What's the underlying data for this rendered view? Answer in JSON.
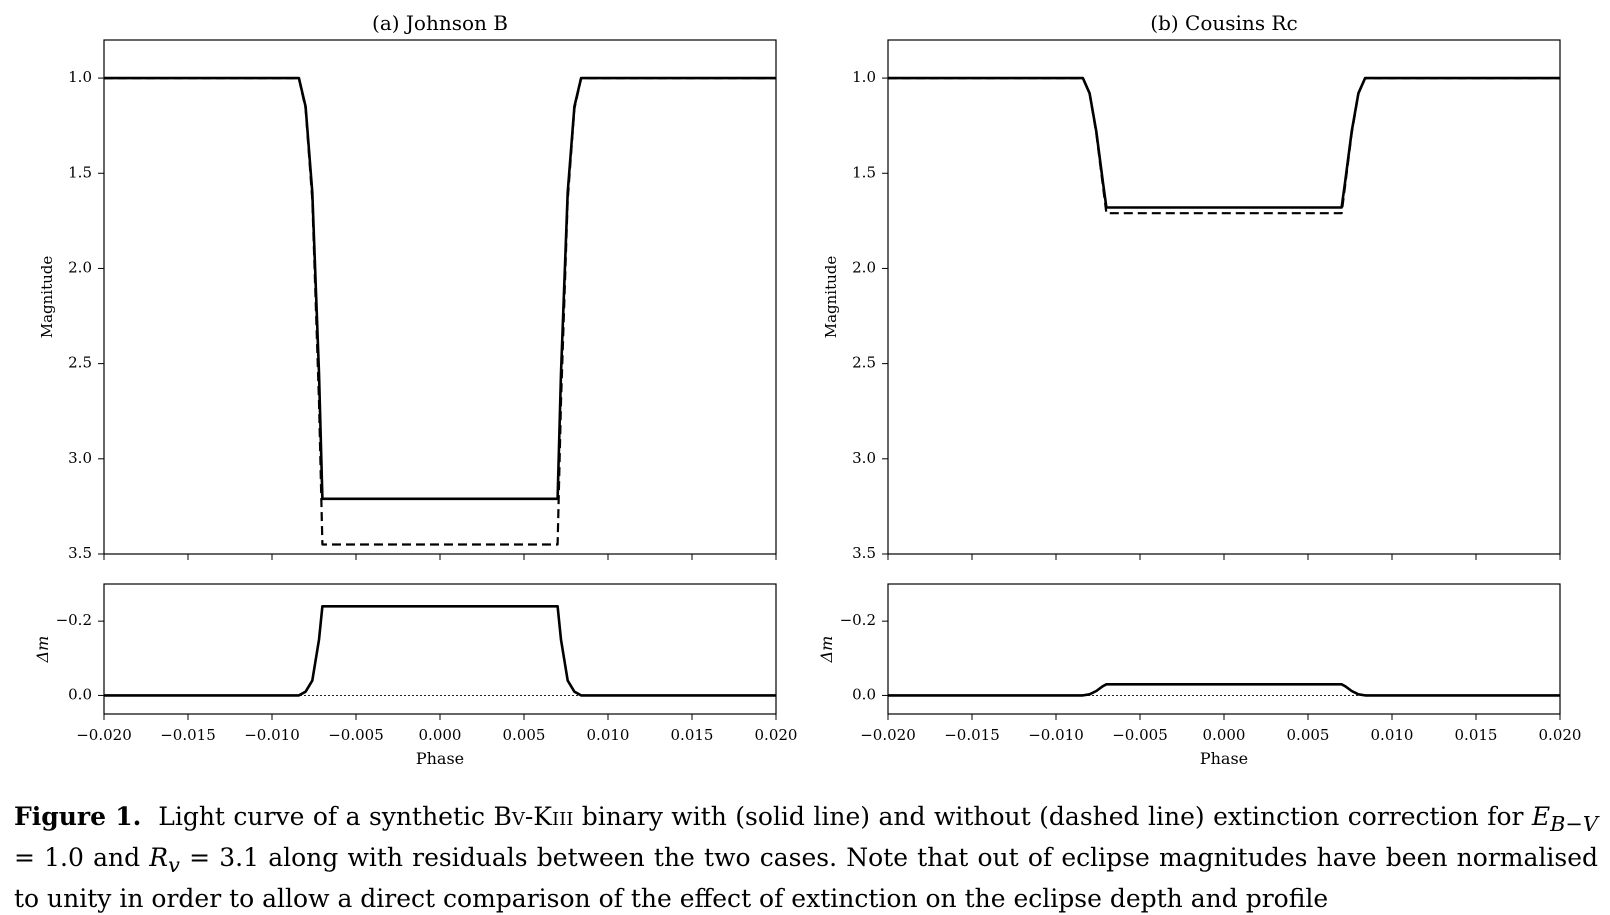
{
  "chart_data": [
    {
      "type": "line",
      "title": "(a) Johnson B",
      "ylabel": "Magnitude",
      "ylim": [
        3.5,
        0.8
      ],
      "xlim": [
        -0.02,
        0.02
      ],
      "yticks": [
        "1.0",
        "1.5",
        "2.0",
        "2.5",
        "3.0",
        "3.5"
      ],
      "series": [
        {
          "style": "solid",
          "x": [
            -0.02,
            -0.0084,
            -0.008,
            -0.0076,
            -0.0072,
            -0.007,
            0.007,
            0.0072,
            0.0076,
            0.008,
            0.0084,
            0.02
          ],
          "y": [
            1.0,
            1.0,
            1.15,
            1.6,
            2.55,
            3.21,
            3.21,
            2.55,
            1.6,
            1.15,
            1.0,
            1.0
          ]
        },
        {
          "style": "dashed",
          "x": [
            -0.02,
            -0.0084,
            -0.008,
            -0.0076,
            -0.0072,
            -0.007,
            0.007,
            0.0072,
            0.0076,
            0.008,
            0.0084,
            0.02
          ],
          "y": [
            1.0,
            1.0,
            1.16,
            1.64,
            2.7,
            3.45,
            3.45,
            2.7,
            1.64,
            1.16,
            1.0,
            1.0
          ]
        }
      ],
      "residual": {
        "ylabel": "Δm",
        "ylim": [
          0.05,
          -0.3
        ],
        "yticks": [
          "−0.2",
          "0.0"
        ],
        "zero_line": true,
        "x": [
          -0.02,
          -0.0084,
          -0.008,
          -0.0076,
          -0.0072,
          -0.007,
          0.007,
          0.0072,
          0.0076,
          0.008,
          0.0084,
          0.02
        ],
        "y": [
          0.0,
          0.0,
          -0.01,
          -0.04,
          -0.15,
          -0.24,
          -0.24,
          -0.15,
          -0.04,
          -0.01,
          0.0,
          0.0
        ]
      }
    },
    {
      "type": "line",
      "title": "(b) Cousins Rc",
      "ylabel": "Magnitude",
      "ylim": [
        3.5,
        0.8
      ],
      "xlim": [
        -0.02,
        0.02
      ],
      "yticks": [
        "1.0",
        "1.5",
        "2.0",
        "2.5",
        "3.0",
        "3.5"
      ],
      "series": [
        {
          "style": "solid",
          "x": [
            -0.02,
            -0.0084,
            -0.008,
            -0.0076,
            -0.0072,
            -0.007,
            0.007,
            0.0072,
            0.0076,
            0.008,
            0.0084,
            0.02
          ],
          "y": [
            1.0,
            1.0,
            1.08,
            1.28,
            1.55,
            1.68,
            1.68,
            1.55,
            1.28,
            1.08,
            1.0,
            1.0
          ]
        },
        {
          "style": "dashed",
          "x": [
            -0.02,
            -0.0084,
            -0.008,
            -0.0076,
            -0.0072,
            -0.007,
            0.007,
            0.0072,
            0.0076,
            0.008,
            0.0084,
            0.02
          ],
          "y": [
            1.0,
            1.0,
            1.08,
            1.29,
            1.57,
            1.71,
            1.71,
            1.57,
            1.29,
            1.08,
            1.0,
            1.0
          ]
        }
      ],
      "residual": {
        "ylabel": "Δm",
        "ylim": [
          0.05,
          -0.3
        ],
        "yticks": [
          "−0.2",
          "0.0"
        ],
        "zero_line": true,
        "x": [
          -0.02,
          -0.0084,
          -0.008,
          -0.0076,
          -0.0072,
          -0.007,
          0.007,
          0.0072,
          0.0076,
          0.008,
          0.0084,
          0.02
        ],
        "y": [
          0.0,
          0.0,
          -0.003,
          -0.012,
          -0.025,
          -0.03,
          -0.03,
          -0.025,
          -0.012,
          -0.003,
          0.0,
          0.0
        ]
      }
    }
  ],
  "xaxis": {
    "label": "Phase",
    "ticks": [
      -0.02,
      -0.015,
      -0.01,
      -0.005,
      0.0,
      0.005,
      0.01,
      0.015,
      0.02
    ],
    "tick_labels": [
      "−0.020",
      "−0.015",
      "−0.010",
      "−0.005",
      "0.000",
      "0.005",
      "0.010",
      "0.015",
      "0.020"
    ]
  },
  "caption": {
    "label": "Figure 1.",
    "part1": "Light curve of a synthetic B",
    "part2": "v",
    "part3": "-K",
    "part4": "iii",
    "part5": " binary with (solid line) and without (dashed line) extinction correction for",
    "ebv_symbol": "E",
    "ebv_sub": "B−V",
    "ebv_value": " = 1.0 and ",
    "rv_symbol": "R",
    "rv_sub": "v",
    "rv_value": " = 3.1 along with residuals between the two cases.  Note that out of eclipse magnitudes have been normalised to unity in order to allow a direct comparison of the effect of extinction on the eclipse depth and profile"
  }
}
